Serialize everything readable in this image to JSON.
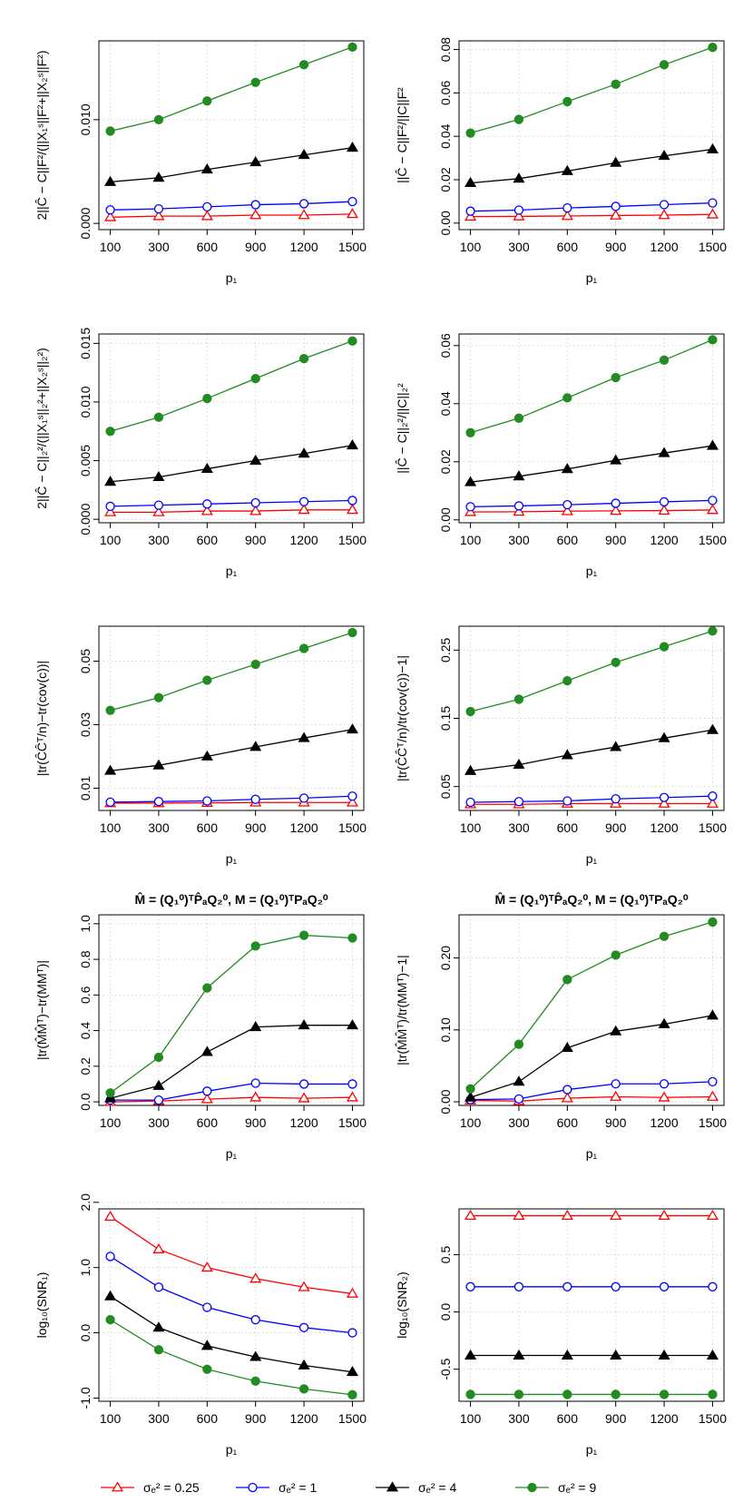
{
  "chart_data": [
    {
      "type": "line",
      "ylabel": "2||Ĉ − C||F²/(||X₁ˢ||F²+||X₂ˢ||F²)",
      "xlabel": "p₁",
      "categories": [
        100,
        300,
        600,
        900,
        1200,
        1500
      ],
      "ylim": [
        -0.0006,
        0.0176
      ],
      "yticks": [
        {
          "value": 0,
          "label": "0.000"
        },
        {
          "value": 0.01,
          "label": "0.010"
        }
      ],
      "grid": true,
      "series": [
        {
          "color": "#ff0000",
          "marker": "triangle-open",
          "values": [
            0.0006,
            0.0007,
            0.0007,
            0.0008,
            0.0008,
            0.0009
          ]
        },
        {
          "color": "#0000ff",
          "marker": "circle-open",
          "values": [
            0.0013,
            0.0014,
            0.0016,
            0.0018,
            0.0019,
            0.0021
          ]
        },
        {
          "color": "#000000",
          "marker": "triangle-filled",
          "values": [
            0.004,
            0.0044,
            0.0052,
            0.0059,
            0.0066,
            0.0073
          ]
        },
        {
          "color": "#228b22",
          "marker": "circle-filled",
          "values": [
            0.0089,
            0.01,
            0.0118,
            0.0136,
            0.0153,
            0.017
          ]
        }
      ]
    },
    {
      "type": "line",
      "ylabel": "||Ĉ − C||F²/||C||F²",
      "xlabel": "p₁",
      "categories": [
        100,
        300,
        600,
        900,
        1200,
        1500
      ],
      "ylim": [
        -0.003,
        0.084
      ],
      "yticks": [
        {
          "value": 0,
          "label": "0.00"
        },
        0.02,
        0.04,
        0.06,
        0.08
      ],
      "grid": true,
      "series": [
        {
          "color": "#ff0000",
          "marker": "triangle-open",
          "values": [
            0.003,
            0.0031,
            0.0033,
            0.0035,
            0.0037,
            0.004
          ]
        },
        {
          "color": "#0000ff",
          "marker": "circle-open",
          "values": [
            0.0055,
            0.006,
            0.007,
            0.0077,
            0.0085,
            0.0093
          ]
        },
        {
          "color": "#000000",
          "marker": "triangle-filled",
          "values": [
            0.0185,
            0.0205,
            0.024,
            0.0278,
            0.031,
            0.034
          ]
        },
        {
          "color": "#228b22",
          "marker": "circle-filled",
          "values": [
            0.0415,
            0.0478,
            0.056,
            0.064,
            0.073,
            0.081
          ]
        }
      ]
    },
    {
      "type": "line",
      "ylabel": "2||Ĉ − C||₂²/(||X₁ˢ||₂²+||X₂ˢ||₂²)",
      "xlabel": "p₁",
      "categories": [
        100,
        300,
        600,
        900,
        1200,
        1500
      ],
      "ylim": [
        -0.0003,
        0.0158
      ],
      "yticks": [
        {
          "value": 0,
          "label": "0.000"
        },
        0.005,
        {
          "value": 0.01,
          "label": "0.010"
        },
        0.015
      ],
      "grid": true,
      "series": [
        {
          "color": "#ff0000",
          "marker": "triangle-open",
          "values": [
            0.0006,
            0.0006,
            0.0007,
            0.0007,
            0.0008,
            0.0008
          ]
        },
        {
          "color": "#0000ff",
          "marker": "circle-open",
          "values": [
            0.0011,
            0.0012,
            0.0013,
            0.0014,
            0.0015,
            0.0016
          ]
        },
        {
          "color": "#000000",
          "marker": "triangle-filled",
          "values": [
            0.0032,
            0.0036,
            0.0043,
            0.005,
            0.0056,
            0.0063
          ]
        },
        {
          "color": "#228b22",
          "marker": "circle-filled",
          "values": [
            0.0075,
            0.0087,
            0.0103,
            0.012,
            0.0137,
            0.0152
          ]
        }
      ]
    },
    {
      "type": "line",
      "ylabel": "||Ĉ − C||₂²/||C||₂²",
      "xlabel": "p₁",
      "categories": [
        100,
        300,
        600,
        900,
        1200,
        1500
      ],
      "ylim": [
        -0.001,
        0.064
      ],
      "yticks": [
        {
          "value": 0,
          "label": "0.00"
        },
        0.02,
        0.04,
        0.06
      ],
      "grid": true,
      "series": [
        {
          "color": "#ff0000",
          "marker": "triangle-open",
          "values": [
            0.0027,
            0.0028,
            0.003,
            0.0031,
            0.0032,
            0.0034
          ]
        },
        {
          "color": "#0000ff",
          "marker": "circle-open",
          "values": [
            0.0045,
            0.0048,
            0.0052,
            0.0057,
            0.0062,
            0.0067
          ]
        },
        {
          "color": "#000000",
          "marker": "triangle-filled",
          "values": [
            0.013,
            0.015,
            0.0175,
            0.0205,
            0.023,
            0.0255
          ]
        },
        {
          "color": "#228b22",
          "marker": "circle-filled",
          "values": [
            0.03,
            0.035,
            0.042,
            0.049,
            0.055,
            0.062
          ]
        }
      ]
    },
    {
      "type": "line",
      "ylabel": "|tr(ĈĈᵀ/n)−tr(cov(c))|",
      "xlabel": "p₁",
      "categories": [
        100,
        300,
        600,
        900,
        1200,
        1500
      ],
      "ylim": [
        0.003,
        0.061
      ],
      "yticks": [
        0.01,
        0.03,
        0.05
      ],
      "grid": true,
      "series": [
        {
          "color": "#ff0000",
          "marker": "triangle-open",
          "values": [
            0.0053,
            0.0053,
            0.0054,
            0.0055,
            0.0055,
            0.0055
          ]
        },
        {
          "color": "#0000ff",
          "marker": "circle-open",
          "values": [
            0.0056,
            0.0058,
            0.006,
            0.0065,
            0.0069,
            0.0075
          ]
        },
        {
          "color": "#000000",
          "marker": "triangle-filled",
          "values": [
            0.0155,
            0.0172,
            0.02,
            0.023,
            0.0258,
            0.0285
          ]
        },
        {
          "color": "#228b22",
          "marker": "circle-filled",
          "values": [
            0.0345,
            0.0385,
            0.044,
            0.049,
            0.054,
            0.059
          ]
        }
      ]
    },
    {
      "type": "line",
      "ylabel": "|tr(ĈĈᵀ/n)/tr(cov(c))−1|",
      "xlabel": "p₁",
      "categories": [
        100,
        300,
        600,
        900,
        1200,
        1500
      ],
      "ylim": [
        0.015,
        0.285
      ],
      "yticks": [
        0.05,
        0.15,
        0.25
      ],
      "grid": true,
      "series": [
        {
          "color": "#ff0000",
          "marker": "triangle-open",
          "values": [
            0.024,
            0.024,
            0.025,
            0.025,
            0.025,
            0.025
          ]
        },
        {
          "color": "#0000ff",
          "marker": "circle-open",
          "values": [
            0.027,
            0.028,
            0.029,
            0.032,
            0.034,
            0.036
          ]
        },
        {
          "color": "#000000",
          "marker": "triangle-filled",
          "values": [
            0.073,
            0.082,
            0.096,
            0.108,
            0.121,
            0.133
          ]
        },
        {
          "color": "#228b22",
          "marker": "circle-filled",
          "values": [
            0.16,
            0.178,
            0.205,
            0.232,
            0.255,
            0.278
          ]
        }
      ]
    },
    {
      "type": "line",
      "title": "M̂ = (Q₁⁰)ᵀP̂ₐQ₂⁰,  M = (Q₁⁰)ᵀPₐQ₂⁰",
      "ylabel": "|tr(M̂M̂ᵀ)−tr(MMᵀ)|",
      "xlabel": "p₁",
      "categories": [
        100,
        300,
        600,
        900,
        1200,
        1500
      ],
      "ylim": [
        -0.02,
        1.05
      ],
      "yticks": [
        {
          "value": 0,
          "label": "0.0"
        },
        0.2,
        0.4,
        0.6,
        0.8,
        {
          "value": 1,
          "label": "1.0"
        }
      ],
      "grid": true,
      "series": [
        {
          "color": "#ff0000",
          "marker": "triangle-open",
          "values": [
            0,
            0.005,
            0.015,
            0.025,
            0.02,
            0.025
          ]
        },
        {
          "color": "#0000ff",
          "marker": "circle-open",
          "values": [
            0.01,
            0.01,
            0.06,
            0.105,
            0.1,
            0.1
          ]
        },
        {
          "color": "#000000",
          "marker": "triangle-filled",
          "values": [
            0.02,
            0.09,
            0.28,
            0.42,
            0.43,
            0.43
          ]
        },
        {
          "color": "#228b22",
          "marker": "circle-filled",
          "values": [
            0.05,
            0.25,
            0.64,
            0.875,
            0.935,
            0.92
          ]
        }
      ]
    },
    {
      "type": "line",
      "title": "M̂ = (Q₁⁰)ᵀP̂ₐQ₂⁰,  M = (Q₁⁰)ᵀPₐQ₂⁰",
      "ylabel": "|tr(M̂M̂ᵀ)/tr(MMᵀ)−1|",
      "xlabel": "p₁",
      "categories": [
        100,
        300,
        600,
        900,
        1200,
        1500
      ],
      "ylim": [
        -0.005,
        0.26
      ],
      "yticks": [
        {
          "value": 0,
          "label": "0.00"
        },
        {
          "value": 0.1,
          "label": "0.10"
        },
        {
          "value": 0.2,
          "label": "0.20"
        }
      ],
      "grid": true,
      "series": [
        {
          "color": "#ff0000",
          "marker": "triangle-open",
          "values": [
            0.002,
            0.001,
            0.005,
            0.007,
            0.006,
            0.007
          ]
        },
        {
          "color": "#0000ff",
          "marker": "circle-open",
          "values": [
            0.003,
            0.004,
            0.017,
            0.025,
            0.025,
            0.028
          ]
        },
        {
          "color": "#000000",
          "marker": "triangle-filled",
          "values": [
            0.006,
            0.028,
            0.075,
            0.098,
            0.108,
            0.12
          ]
        },
        {
          "color": "#228b22",
          "marker": "circle-filled",
          "values": [
            0.018,
            0.08,
            0.17,
            0.204,
            0.23,
            0.25
          ]
        }
      ]
    },
    {
      "type": "line",
      "ylabel": "log₁₀(SNR₁)",
      "xlabel": "p₁",
      "categories": [
        100,
        300,
        600,
        900,
        1200,
        1500
      ],
      "ylim": [
        -1.05,
        1.9
      ],
      "yticks": [
        {
          "value": -1,
          "label": "-1.0"
        },
        {
          "value": 0,
          "label": "0.0"
        },
        {
          "value": 1,
          "label": "1.0"
        },
        {
          "value": 2,
          "label": "2.0"
        }
      ],
      "grid": true,
      "series": [
        {
          "color": "#ff0000",
          "marker": "triangle-open",
          "values": [
            1.78,
            1.28,
            1.0,
            0.83,
            0.7,
            0.6
          ]
        },
        {
          "color": "#0000ff",
          "marker": "circle-open",
          "values": [
            1.17,
            0.7,
            0.39,
            0.2,
            0.08,
            0.0
          ]
        },
        {
          "color": "#000000",
          "marker": "triangle-filled",
          "values": [
            0.56,
            0.08,
            -0.2,
            -0.37,
            -0.5,
            -0.6
          ]
        },
        {
          "color": "#228b22",
          "marker": "circle-filled",
          "values": [
            0.2,
            -0.26,
            -0.56,
            -0.74,
            -0.86,
            -0.95
          ]
        }
      ]
    },
    {
      "type": "line",
      "ylabel": "log₁₀(SNR₂)",
      "xlabel": "p₁",
      "categories": [
        100,
        300,
        600,
        900,
        1200,
        1500
      ],
      "ylim": [
        -0.78,
        0.9
      ],
      "yticks": [
        -0.5,
        {
          "value": 0,
          "label": "0.0"
        },
        0.5
      ],
      "grid": true,
      "series": [
        {
          "color": "#ff0000",
          "marker": "triangle-open",
          "values": [
            0.84,
            0.84,
            0.84,
            0.84,
            0.84,
            0.84
          ]
        },
        {
          "color": "#0000ff",
          "marker": "circle-open",
          "values": [
            0.22,
            0.22,
            0.22,
            0.22,
            0.22,
            0.22
          ]
        },
        {
          "color": "#000000",
          "marker": "triangle-filled",
          "values": [
            -0.38,
            -0.38,
            -0.38,
            -0.38,
            -0.38,
            -0.38
          ]
        },
        {
          "color": "#228b22",
          "marker": "circle-filled",
          "values": [
            -0.72,
            -0.72,
            -0.72,
            -0.72,
            -0.72,
            -0.72
          ]
        }
      ]
    }
  ],
  "legend": [
    {
      "name": "σₑ² = 0.25",
      "color": "#ff0000",
      "marker": "triangle-open"
    },
    {
      "name": "σₑ² = 1",
      "color": "#0000ff",
      "marker": "circle-open"
    },
    {
      "name": "σₑ² = 4",
      "color": "#000000",
      "marker": "triangle-filled"
    },
    {
      "name": "σₑ² = 9",
      "color": "#228b22",
      "marker": "circle-filled"
    }
  ]
}
